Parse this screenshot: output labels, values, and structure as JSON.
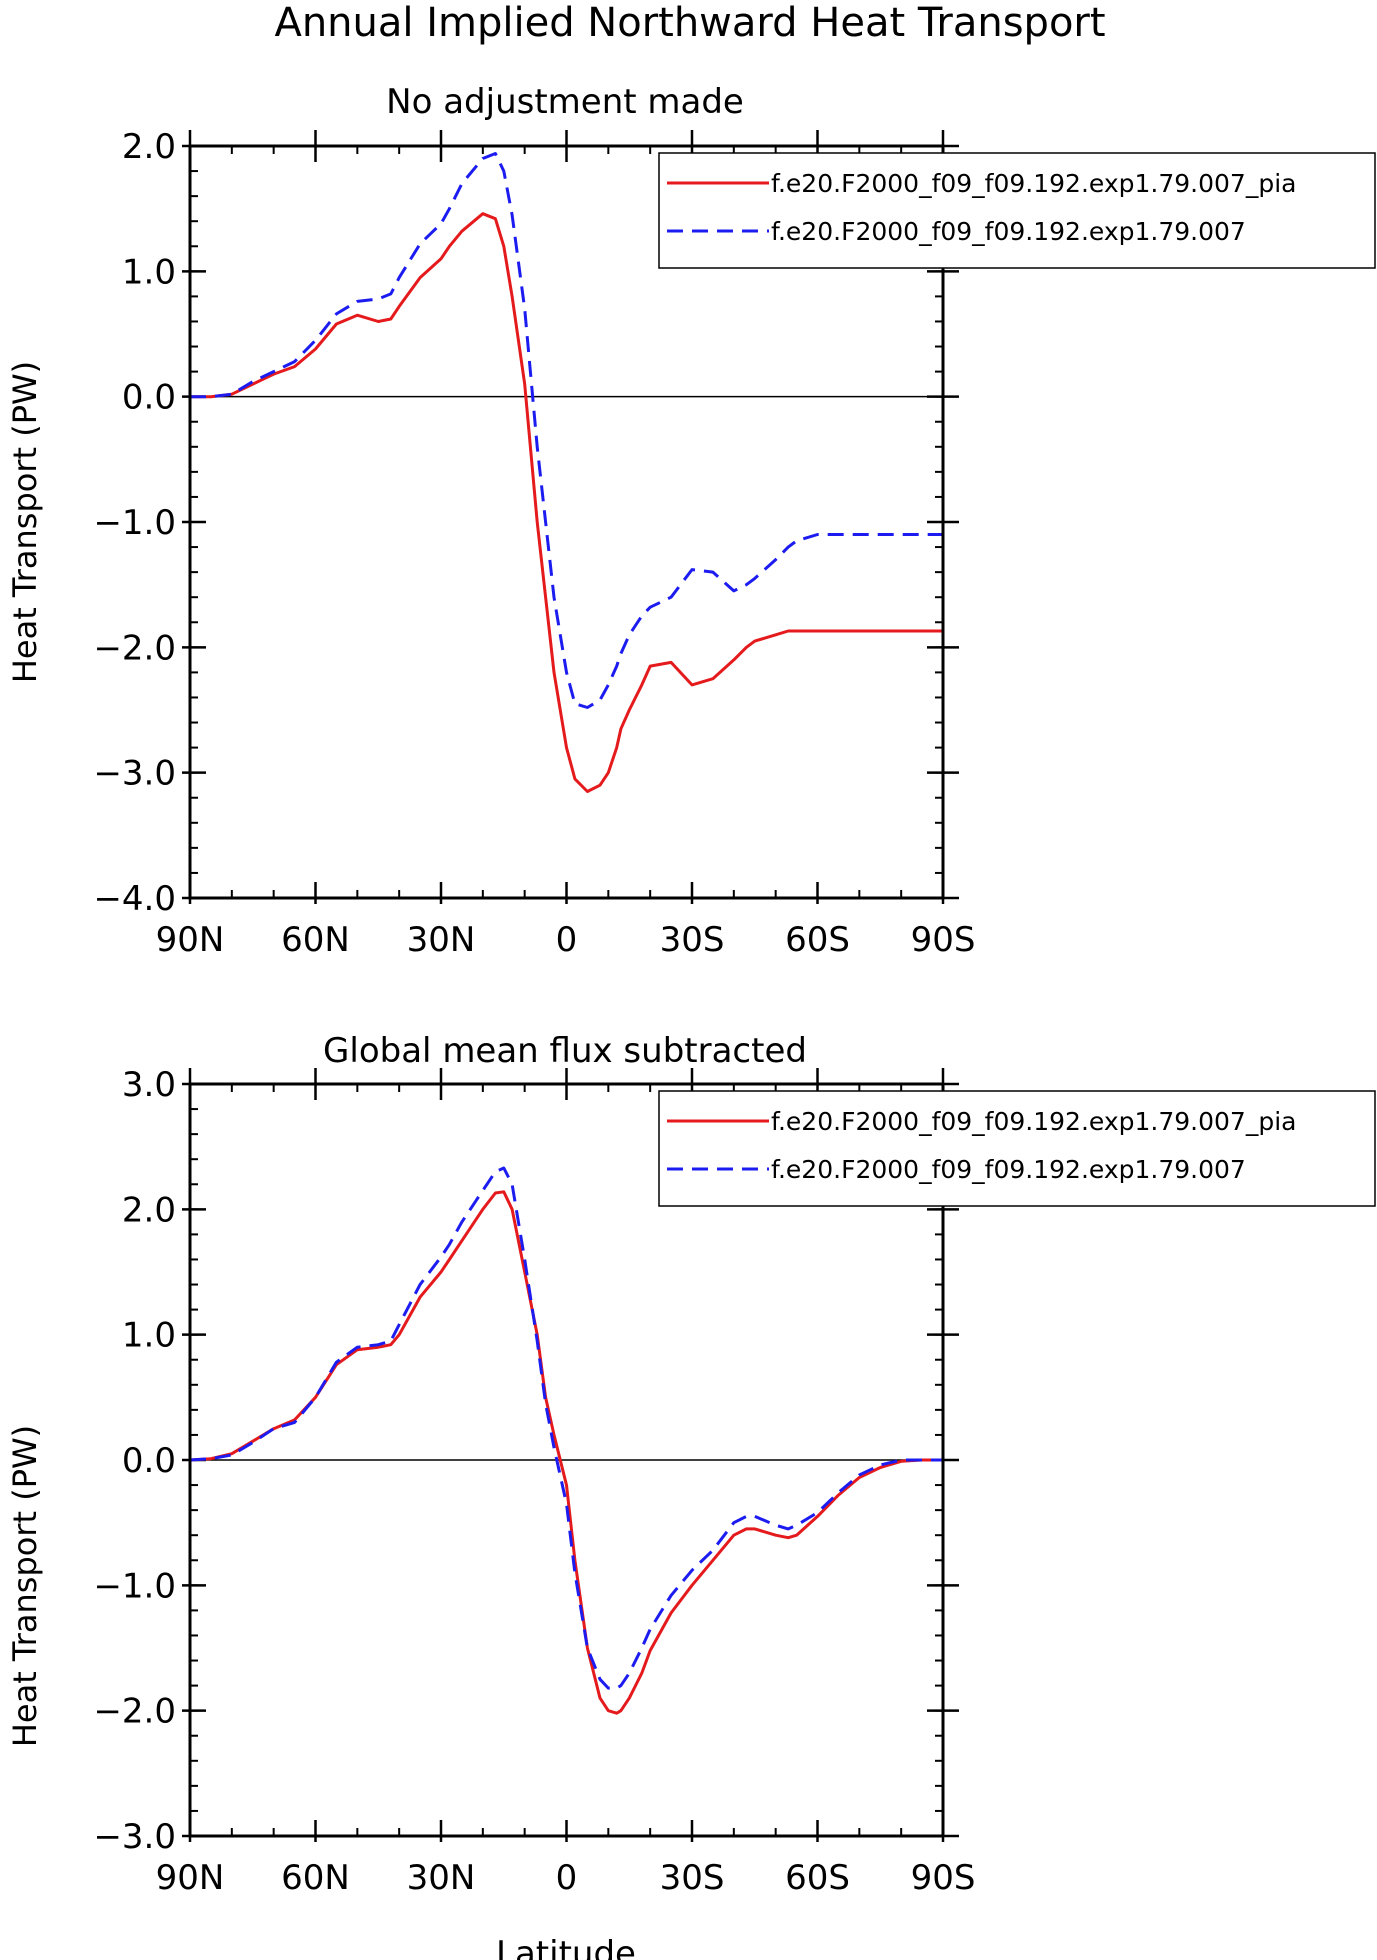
{
  "figure": {
    "title": "Annual Implied Northward Heat Transport",
    "xlabel": "Latitude"
  },
  "chart_data": [
    {
      "type": "line",
      "title": "No adjustment made",
      "xlabel": "",
      "ylabel": "Heat Transport (PW)",
      "xlim": [
        90,
        -90
      ],
      "ylim": [
        -4.0,
        2.0
      ],
      "x_ticks": [
        90,
        60,
        30,
        0,
        -30,
        -60,
        -90
      ],
      "x_tick_labels": [
        "90N",
        "60N",
        "30N",
        "0",
        "30S",
        "60S",
        "90S"
      ],
      "y_ticks": [
        2.0,
        1.0,
        0.0,
        -1.0,
        -2.0,
        -3.0,
        -4.0
      ],
      "y_tick_labels": [
        "2.0",
        "1.0",
        "0.0",
        "−1.0",
        "−2.0",
        "−3.0",
        "−4.0"
      ],
      "zero_line": true,
      "legend": "top-right",
      "series": [
        {
          "name": "f.e20.F2000_f09_f09.192.exp1.79.007_pia",
          "color": "#e41a1c",
          "dash": "solid",
          "x": [
            90,
            85,
            80,
            75,
            70,
            65,
            60,
            55,
            50,
            45,
            42,
            40,
            35,
            30,
            28,
            25,
            20,
            17,
            15,
            13,
            10,
            7,
            5,
            3,
            0,
            -2,
            -5,
            -8,
            -10,
            -12,
            -13,
            -15,
            -18,
            -20,
            -25,
            -30,
            -35,
            -40,
            -43,
            -45,
            -50,
            -53,
            -55,
            -60,
            -65,
            -70,
            -75,
            -80,
            -85,
            -90
          ],
          "values": [
            0.0,
            0.0,
            0.02,
            0.1,
            0.18,
            0.24,
            0.38,
            0.58,
            0.65,
            0.6,
            0.62,
            0.72,
            0.95,
            1.1,
            1.2,
            1.32,
            1.46,
            1.42,
            1.2,
            0.8,
            0.1,
            -1.0,
            -1.6,
            -2.2,
            -2.8,
            -3.05,
            -3.15,
            -3.1,
            -3.0,
            -2.8,
            -2.65,
            -2.5,
            -2.3,
            -2.15,
            -2.12,
            -2.3,
            -2.25,
            -2.1,
            -2.0,
            -1.95,
            -1.9,
            -1.87,
            -1.87,
            -1.87,
            -1.87,
            -1.87,
            -1.87,
            -1.87,
            -1.87,
            -1.87
          ]
        },
        {
          "name": "f.e20.F2000_f09_f09.192.exp1.79.007",
          "color": "#1c1cf0",
          "dash": "dashed",
          "x": [
            90,
            85,
            80,
            75,
            70,
            65,
            60,
            55,
            50,
            45,
            42,
            40,
            35,
            30,
            28,
            25,
            20,
            17,
            15,
            13,
            10,
            7,
            5,
            3,
            0,
            -2,
            -5,
            -8,
            -10,
            -12,
            -13,
            -15,
            -18,
            -20,
            -25,
            -30,
            -35,
            -40,
            -43,
            -45,
            -50,
            -53,
            -55,
            -60,
            -65,
            -70,
            -75,
            -80,
            -85,
            -90
          ],
          "values": [
            0.0,
            0.0,
            0.02,
            0.12,
            0.2,
            0.28,
            0.45,
            0.66,
            0.76,
            0.78,
            0.82,
            0.95,
            1.22,
            1.38,
            1.5,
            1.7,
            1.9,
            1.94,
            1.8,
            1.45,
            0.7,
            -0.4,
            -1.0,
            -1.6,
            -2.2,
            -2.45,
            -2.48,
            -2.42,
            -2.3,
            -2.15,
            -2.05,
            -1.9,
            -1.75,
            -1.68,
            -1.6,
            -1.38,
            -1.4,
            -1.55,
            -1.5,
            -1.45,
            -1.3,
            -1.2,
            -1.15,
            -1.1,
            -1.1,
            -1.1,
            -1.1,
            -1.1,
            -1.1,
            -1.1
          ]
        }
      ]
    },
    {
      "type": "line",
      "title": "Global mean flux subtracted",
      "xlabel": "Latitude",
      "ylabel": "Heat Transport (PW)",
      "xlim": [
        90,
        -90
      ],
      "ylim": [
        -3.0,
        3.0
      ],
      "x_ticks": [
        90,
        60,
        30,
        0,
        -30,
        -60,
        -90
      ],
      "x_tick_labels": [
        "90N",
        "60N",
        "30N",
        "0",
        "30S",
        "60S",
        "90S"
      ],
      "y_ticks": [
        3.0,
        2.0,
        1.0,
        0.0,
        -1.0,
        -2.0,
        -3.0
      ],
      "y_tick_labels": [
        "3.0",
        "2.0",
        "1.0",
        "0.0",
        "−1.0",
        "−2.0",
        "−3.0"
      ],
      "zero_line": true,
      "legend": "top-right",
      "series": [
        {
          "name": "f.e20.F2000_f09_f09.192.exp1.79.007_pia",
          "color": "#e41a1c",
          "dash": "solid",
          "x": [
            90,
            85,
            80,
            75,
            70,
            65,
            60,
            55,
            50,
            45,
            42,
            40,
            35,
            30,
            28,
            25,
            20,
            17,
            15,
            13,
            10,
            7,
            5,
            3,
            0,
            -2,
            -5,
            -8,
            -10,
            -12,
            -13,
            -15,
            -18,
            -20,
            -25,
            -30,
            -35,
            -40,
            -43,
            -45,
            -50,
            -53,
            -55,
            -60,
            -65,
            -70,
            -75,
            -80,
            -85,
            -90
          ],
          "values": [
            0.0,
            0.01,
            0.05,
            0.15,
            0.25,
            0.32,
            0.5,
            0.76,
            0.88,
            0.9,
            0.92,
            1.0,
            1.3,
            1.5,
            1.6,
            1.75,
            2.0,
            2.13,
            2.14,
            2.0,
            1.5,
            1.0,
            0.5,
            0.2,
            -0.2,
            -0.8,
            -1.5,
            -1.9,
            -2.0,
            -2.02,
            -2.0,
            -1.9,
            -1.7,
            -1.52,
            -1.22,
            -1.0,
            -0.8,
            -0.6,
            -0.55,
            -0.55,
            -0.6,
            -0.62,
            -0.6,
            -0.45,
            -0.28,
            -0.14,
            -0.06,
            -0.01,
            0.0,
            0.0
          ]
        },
        {
          "name": "f.e20.F2000_f09_f09.192.exp1.79.007",
          "color": "#1c1cf0",
          "dash": "dashed",
          "x": [
            90,
            85,
            80,
            75,
            70,
            65,
            60,
            55,
            50,
            45,
            42,
            40,
            35,
            30,
            28,
            25,
            20,
            17,
            15,
            13,
            10,
            7,
            5,
            3,
            0,
            -2,
            -5,
            -8,
            -10,
            -12,
            -13,
            -15,
            -18,
            -20,
            -25,
            -30,
            -35,
            -40,
            -43,
            -45,
            -50,
            -53,
            -55,
            -60,
            -65,
            -70,
            -75,
            -80,
            -85,
            -90
          ],
          "values": [
            0.0,
            0.01,
            0.04,
            0.14,
            0.25,
            0.3,
            0.5,
            0.78,
            0.9,
            0.92,
            0.95,
            1.08,
            1.4,
            1.62,
            1.72,
            1.9,
            2.15,
            2.3,
            2.33,
            2.2,
            1.6,
            0.95,
            0.45,
            0.1,
            -0.35,
            -0.9,
            -1.5,
            -1.75,
            -1.82,
            -1.82,
            -1.8,
            -1.7,
            -1.5,
            -1.35,
            -1.08,
            -0.88,
            -0.72,
            -0.5,
            -0.45,
            -0.45,
            -0.52,
            -0.55,
            -0.52,
            -0.42,
            -0.26,
            -0.12,
            -0.04,
            0.0,
            0.0,
            0.0
          ]
        }
      ]
    }
  ]
}
